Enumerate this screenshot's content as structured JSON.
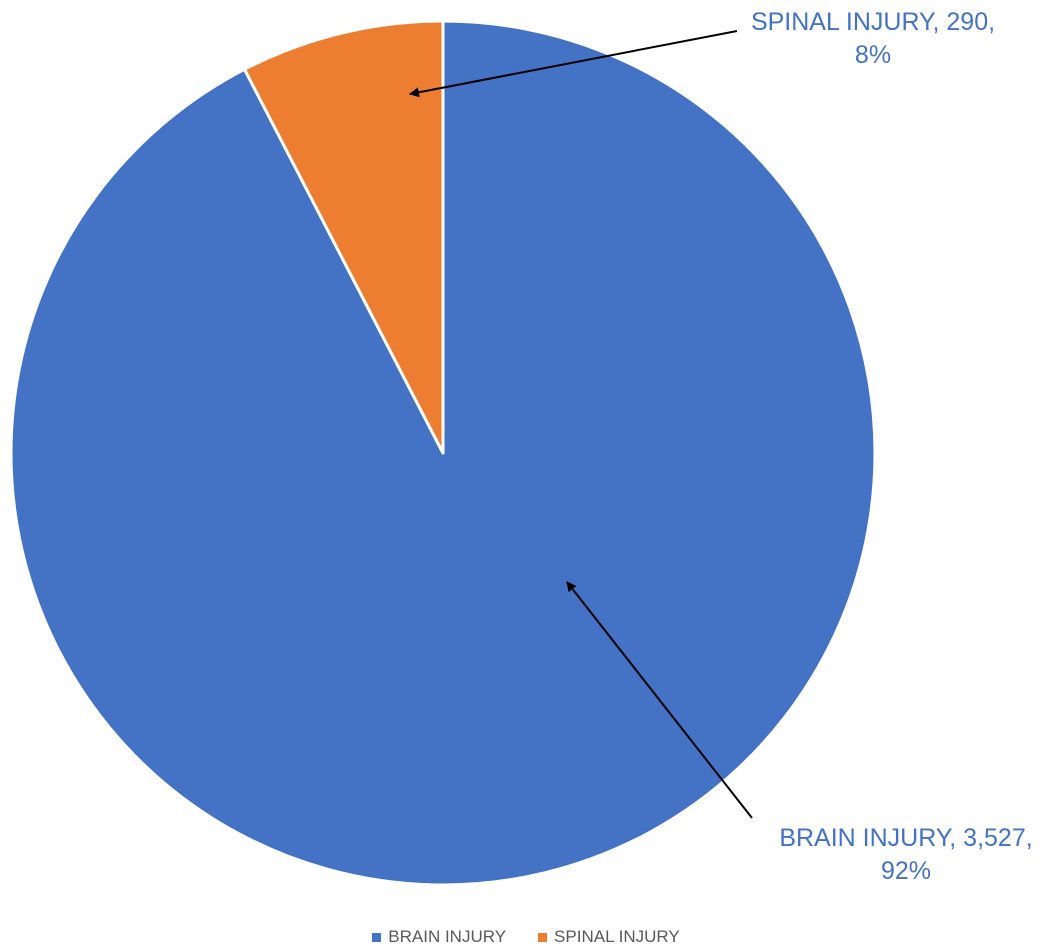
{
  "chart_data": {
    "type": "pie",
    "title": "",
    "start_angle_deg": 0,
    "direction": "clockwise",
    "slices": [
      {
        "label": "BRAIN INJURY",
        "value": 3527,
        "percent": 92,
        "color": "#4472C4"
      },
      {
        "label": "SPINAL INJURY",
        "value": 290,
        "percent": 8,
        "color": "#ED7D31"
      }
    ],
    "data_labels": {
      "brain": {
        "line1": "BRAIN INJURY, 3,527,",
        "line2": "92%",
        "color": "#4472C4"
      },
      "spinal": {
        "line1": "SPINAL INJURY, 290,",
        "line2": "8%",
        "color": "#4472C4"
      }
    },
    "legend": {
      "position": "bottom",
      "items": [
        {
          "label": "BRAIN INJURY",
          "color": "#4472C4"
        },
        {
          "label": "SPINAL INJURY",
          "color": "#ED7D31"
        }
      ]
    }
  }
}
